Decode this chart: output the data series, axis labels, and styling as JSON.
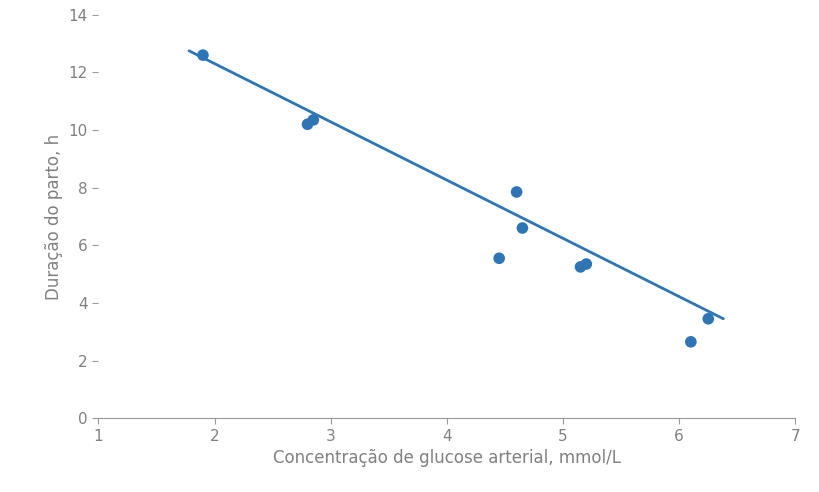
{
  "scatter_x": [
    1.9,
    2.8,
    2.85,
    4.45,
    4.6,
    4.65,
    5.15,
    5.2,
    6.1,
    6.25
  ],
  "scatter_y": [
    12.6,
    10.2,
    10.35,
    5.55,
    7.85,
    6.6,
    5.25,
    5.35,
    2.65,
    3.45
  ],
  "line_x": [
    1.78,
    6.38
  ],
  "line_y": [
    12.75,
    3.45
  ],
  "dot_color": "#2E75B6",
  "line_color": "#2E75B6",
  "xlabel": "Concentração de glucose arterial, mmol/L",
  "ylabel": "Duração do parto, h",
  "xlim": [
    1,
    7
  ],
  "ylim": [
    0,
    14
  ],
  "xticks": [
    1,
    2,
    3,
    4,
    5,
    6,
    7
  ],
  "yticks": [
    0,
    2,
    4,
    6,
    8,
    10,
    12,
    14
  ],
  "dot_size": 70,
  "line_width": 2.0,
  "xlabel_fontsize": 12,
  "ylabel_fontsize": 12,
  "tick_fontsize": 11,
  "tick_color": "#808080",
  "spine_color": "#999999",
  "background_color": "#ffffff"
}
